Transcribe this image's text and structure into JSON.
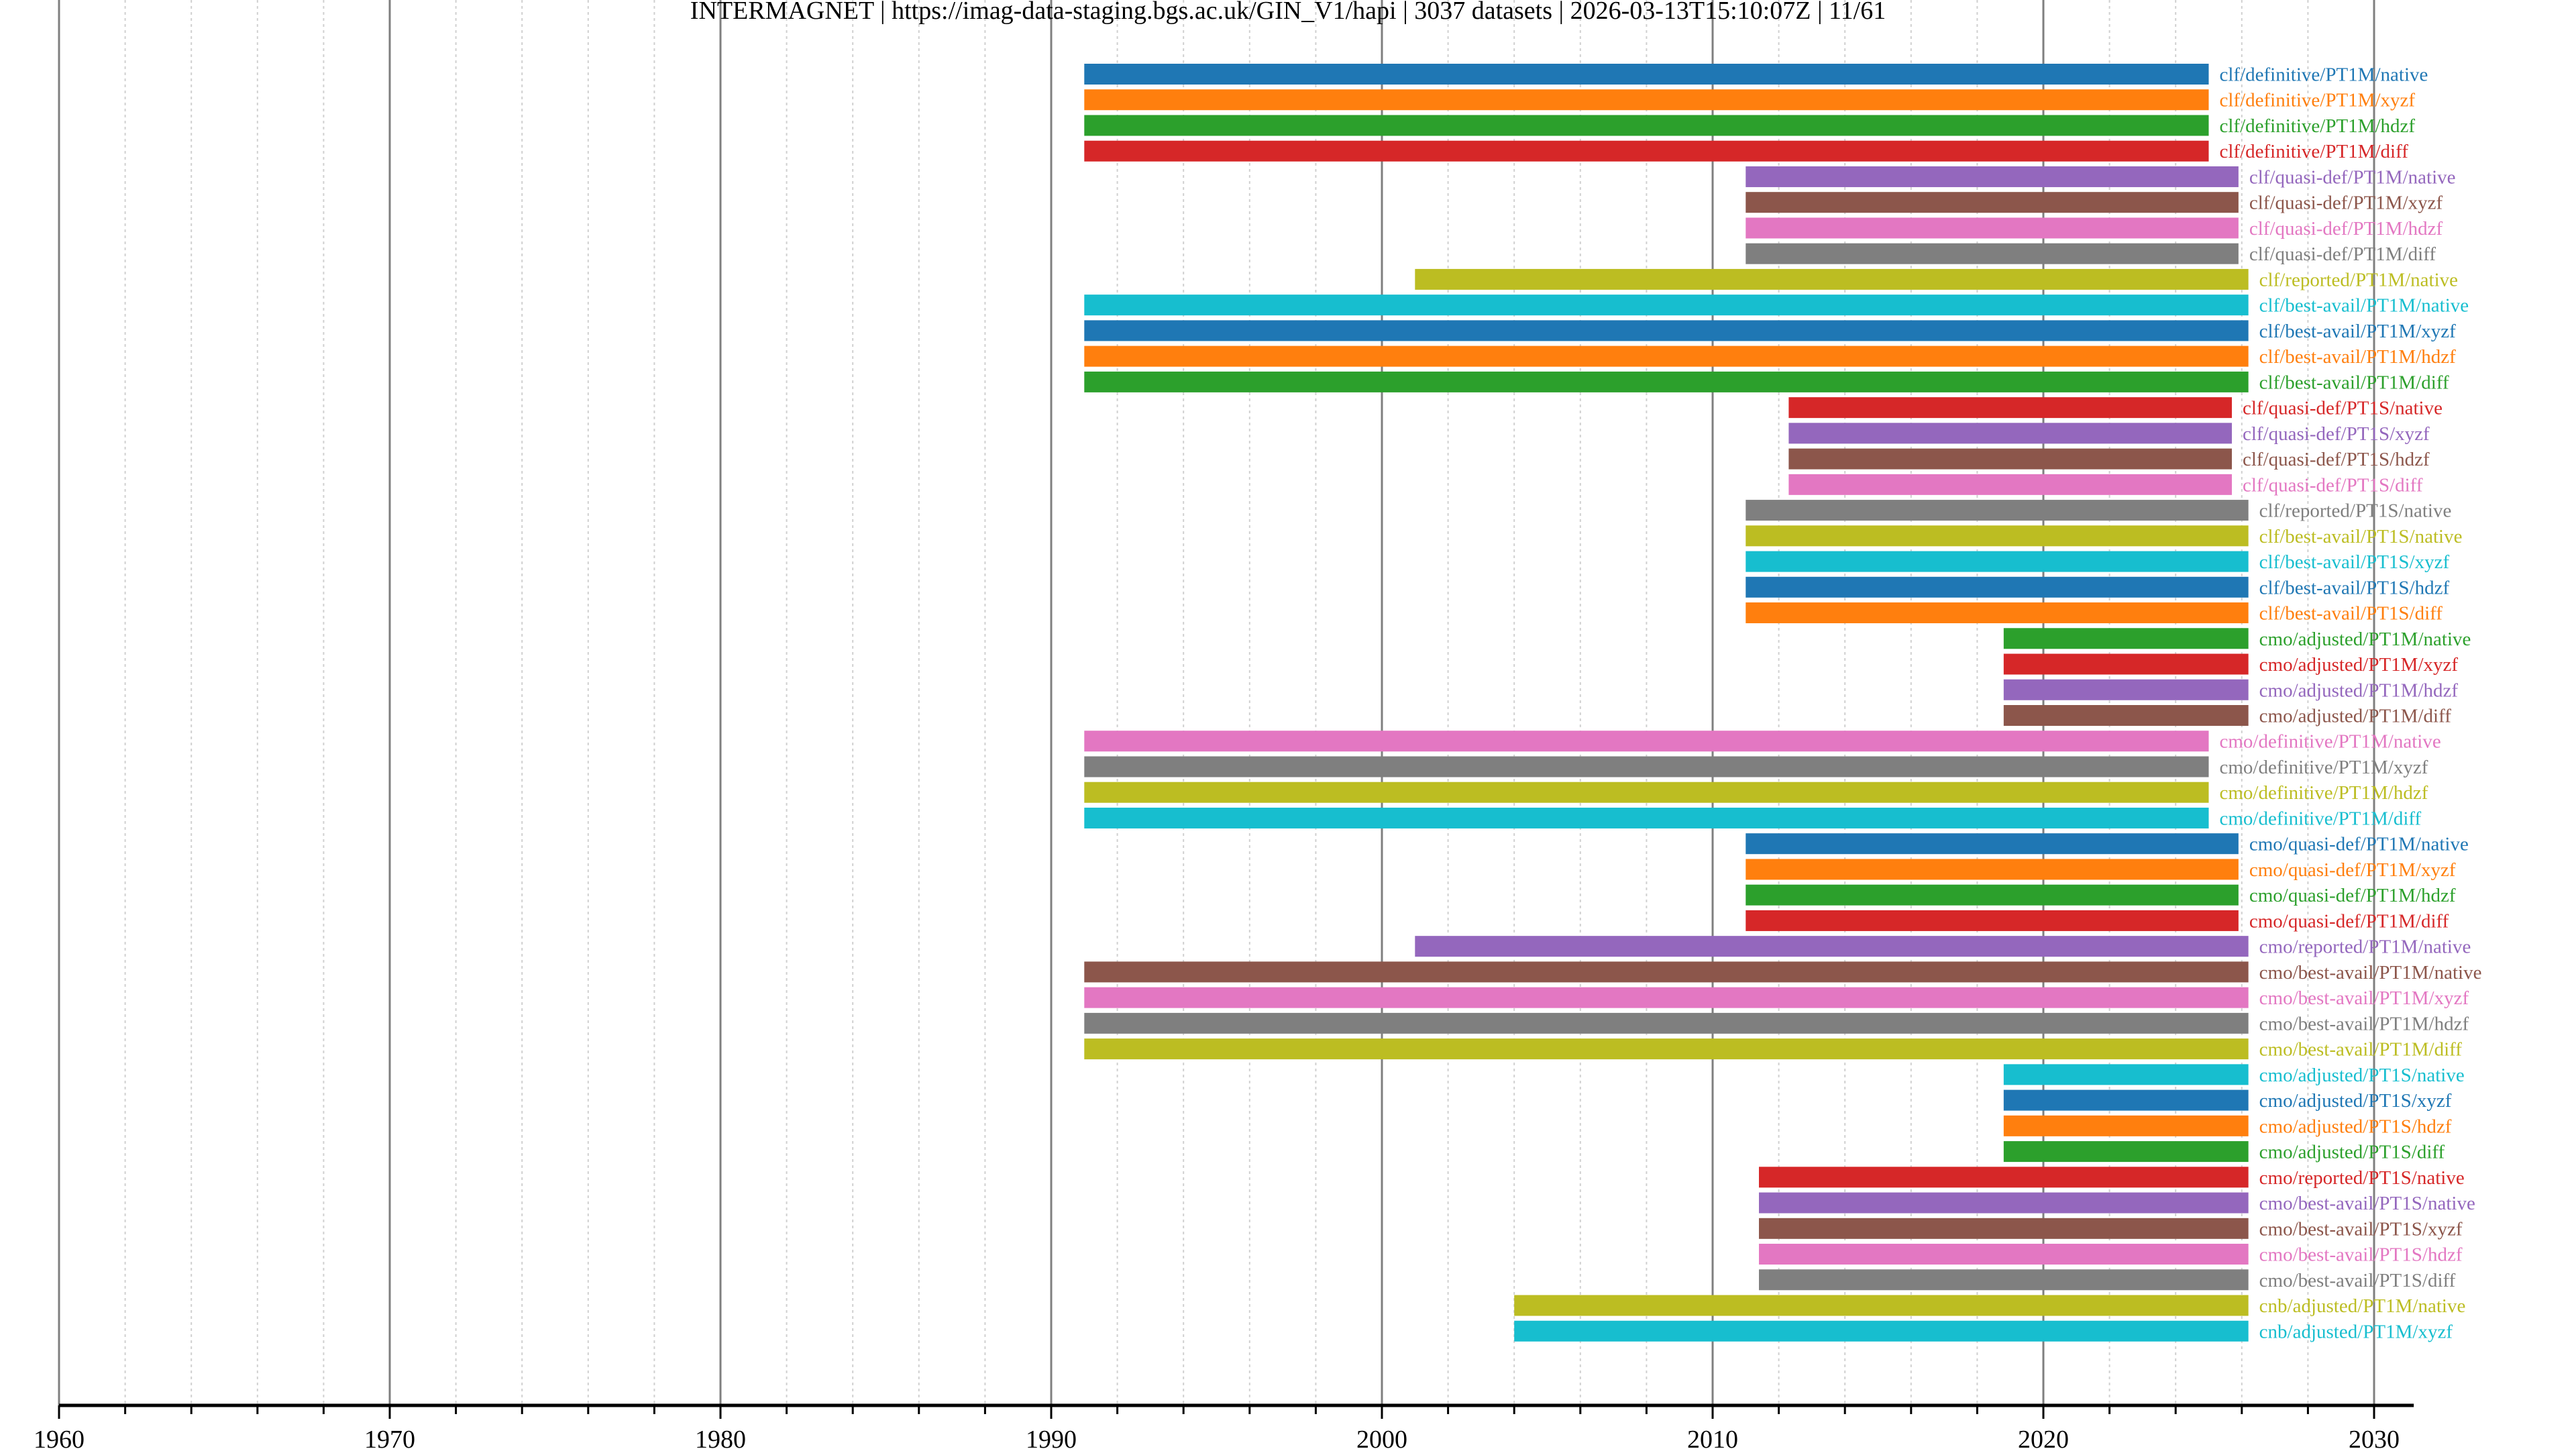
{
  "chart_data": {
    "type": "bar",
    "orientation": "horizontal-timeline",
    "title": "INTERMAGNET | https://imag-data-staging.bgs.ac.uk/GIN_V1/hapi | 3037 datasets | 2026-03-13T15:10:07Z | 11/61",
    "xlabel": "",
    "ylabel": "",
    "xlim": [
      1960,
      2031.2
    ],
    "x_major_ticks": [
      1960,
      1970,
      1980,
      1990,
      2000,
      2010,
      2020,
      2030
    ],
    "x_tick_labels": [
      "1960",
      "1970",
      "1980",
      "1990",
      "2000",
      "2010",
      "2020",
      "2030"
    ],
    "x_minor_step": 2,
    "grid": true,
    "legend": "none (labels at bar ends)",
    "palette": [
      "#1f77b4",
      "#ff7f0e",
      "#2ca02c",
      "#d62728",
      "#9467bd",
      "#8c564b",
      "#e377c2",
      "#7f7f7f",
      "#bcbd22",
      "#17becf"
    ],
    "series": [
      {
        "name": "clf/definitive/PT1M/native",
        "start": 1991.0,
        "end": 2025.0,
        "color": "#1f77b4"
      },
      {
        "name": "clf/definitive/PT1M/xyzf",
        "start": 1991.0,
        "end": 2025.0,
        "color": "#ff7f0e"
      },
      {
        "name": "clf/definitive/PT1M/hdzf",
        "start": 1991.0,
        "end": 2025.0,
        "color": "#2ca02c"
      },
      {
        "name": "clf/definitive/PT1M/diff",
        "start": 1991.0,
        "end": 2025.0,
        "color": "#d62728"
      },
      {
        "name": "clf/quasi-def/PT1M/native",
        "start": 2011.0,
        "end": 2025.9,
        "color": "#9467bd"
      },
      {
        "name": "clf/quasi-def/PT1M/xyzf",
        "start": 2011.0,
        "end": 2025.9,
        "color": "#8c564b"
      },
      {
        "name": "clf/quasi-def/PT1M/hdzf",
        "start": 2011.0,
        "end": 2025.9,
        "color": "#e377c2"
      },
      {
        "name": "clf/quasi-def/PT1M/diff",
        "start": 2011.0,
        "end": 2025.9,
        "color": "#7f7f7f"
      },
      {
        "name": "clf/reported/PT1M/native",
        "start": 2001.0,
        "end": 2026.2,
        "color": "#bcbd22"
      },
      {
        "name": "clf/best-avail/PT1M/native",
        "start": 1991.0,
        "end": 2026.2,
        "color": "#17becf"
      },
      {
        "name": "clf/best-avail/PT1M/xyzf",
        "start": 1991.0,
        "end": 2026.2,
        "color": "#1f77b4"
      },
      {
        "name": "clf/best-avail/PT1M/hdzf",
        "start": 1991.0,
        "end": 2026.2,
        "color": "#ff7f0e"
      },
      {
        "name": "clf/best-avail/PT1M/diff",
        "start": 1991.0,
        "end": 2026.2,
        "color": "#2ca02c"
      },
      {
        "name": "clf/quasi-def/PT1S/native",
        "start": 2012.3,
        "end": 2025.7,
        "color": "#d62728"
      },
      {
        "name": "clf/quasi-def/PT1S/xyzf",
        "start": 2012.3,
        "end": 2025.7,
        "color": "#9467bd"
      },
      {
        "name": "clf/quasi-def/PT1S/hdzf",
        "start": 2012.3,
        "end": 2025.7,
        "color": "#8c564b"
      },
      {
        "name": "clf/quasi-def/PT1S/diff",
        "start": 2012.3,
        "end": 2025.7,
        "color": "#e377c2"
      },
      {
        "name": "clf/reported/PT1S/native",
        "start": 2011.0,
        "end": 2026.2,
        "color": "#7f7f7f"
      },
      {
        "name": "clf/best-avail/PT1S/native",
        "start": 2011.0,
        "end": 2026.2,
        "color": "#bcbd22"
      },
      {
        "name": "clf/best-avail/PT1S/xyzf",
        "start": 2011.0,
        "end": 2026.2,
        "color": "#17becf"
      },
      {
        "name": "clf/best-avail/PT1S/hdzf",
        "start": 2011.0,
        "end": 2026.2,
        "color": "#1f77b4"
      },
      {
        "name": "clf/best-avail/PT1S/diff",
        "start": 2011.0,
        "end": 2026.2,
        "color": "#ff7f0e"
      },
      {
        "name": "cmo/adjusted/PT1M/native",
        "start": 2018.8,
        "end": 2026.2,
        "color": "#2ca02c"
      },
      {
        "name": "cmo/adjusted/PT1M/xyzf",
        "start": 2018.8,
        "end": 2026.2,
        "color": "#d62728"
      },
      {
        "name": "cmo/adjusted/PT1M/hdzf",
        "start": 2018.8,
        "end": 2026.2,
        "color": "#9467bd"
      },
      {
        "name": "cmo/adjusted/PT1M/diff",
        "start": 2018.8,
        "end": 2026.2,
        "color": "#8c564b"
      },
      {
        "name": "cmo/definitive/PT1M/native",
        "start": 1991.0,
        "end": 2025.0,
        "color": "#e377c2"
      },
      {
        "name": "cmo/definitive/PT1M/xyzf",
        "start": 1991.0,
        "end": 2025.0,
        "color": "#7f7f7f"
      },
      {
        "name": "cmo/definitive/PT1M/hdzf",
        "start": 1991.0,
        "end": 2025.0,
        "color": "#bcbd22"
      },
      {
        "name": "cmo/definitive/PT1M/diff",
        "start": 1991.0,
        "end": 2025.0,
        "color": "#17becf"
      },
      {
        "name": "cmo/quasi-def/PT1M/native",
        "start": 2011.0,
        "end": 2025.9,
        "color": "#1f77b4"
      },
      {
        "name": "cmo/quasi-def/PT1M/xyzf",
        "start": 2011.0,
        "end": 2025.9,
        "color": "#ff7f0e"
      },
      {
        "name": "cmo/quasi-def/PT1M/hdzf",
        "start": 2011.0,
        "end": 2025.9,
        "color": "#2ca02c"
      },
      {
        "name": "cmo/quasi-def/PT1M/diff",
        "start": 2011.0,
        "end": 2025.9,
        "color": "#d62728"
      },
      {
        "name": "cmo/reported/PT1M/native",
        "start": 2001.0,
        "end": 2026.2,
        "color": "#9467bd"
      },
      {
        "name": "cmo/best-avail/PT1M/native",
        "start": 1991.0,
        "end": 2026.2,
        "color": "#8c564b"
      },
      {
        "name": "cmo/best-avail/PT1M/xyzf",
        "start": 1991.0,
        "end": 2026.2,
        "color": "#e377c2"
      },
      {
        "name": "cmo/best-avail/PT1M/hdzf",
        "start": 1991.0,
        "end": 2026.2,
        "color": "#7f7f7f"
      },
      {
        "name": "cmo/best-avail/PT1M/diff",
        "start": 1991.0,
        "end": 2026.2,
        "color": "#bcbd22"
      },
      {
        "name": "cmo/adjusted/PT1S/native",
        "start": 2018.8,
        "end": 2026.2,
        "color": "#17becf"
      },
      {
        "name": "cmo/adjusted/PT1S/xyzf",
        "start": 2018.8,
        "end": 2026.2,
        "color": "#1f77b4"
      },
      {
        "name": "cmo/adjusted/PT1S/hdzf",
        "start": 2018.8,
        "end": 2026.2,
        "color": "#ff7f0e"
      },
      {
        "name": "cmo/adjusted/PT1S/diff",
        "start": 2018.8,
        "end": 2026.2,
        "color": "#2ca02c"
      },
      {
        "name": "cmo/reported/PT1S/native",
        "start": 2011.4,
        "end": 2026.2,
        "color": "#d62728"
      },
      {
        "name": "cmo/best-avail/PT1S/native",
        "start": 2011.4,
        "end": 2026.2,
        "color": "#9467bd"
      },
      {
        "name": "cmo/best-avail/PT1S/xyzf",
        "start": 2011.4,
        "end": 2026.2,
        "color": "#8c564b"
      },
      {
        "name": "cmo/best-avail/PT1S/hdzf",
        "start": 2011.4,
        "end": 2026.2,
        "color": "#e377c2"
      },
      {
        "name": "cmo/best-avail/PT1S/diff",
        "start": 2011.4,
        "end": 2026.2,
        "color": "#7f7f7f"
      },
      {
        "name": "cnb/adjusted/PT1M/native",
        "start": 2004.0,
        "end": 2026.2,
        "color": "#bcbd22"
      },
      {
        "name": "cnb/adjusted/PT1M/xyzf",
        "start": 2004.0,
        "end": 2026.2,
        "color": "#17becf"
      }
    ]
  }
}
